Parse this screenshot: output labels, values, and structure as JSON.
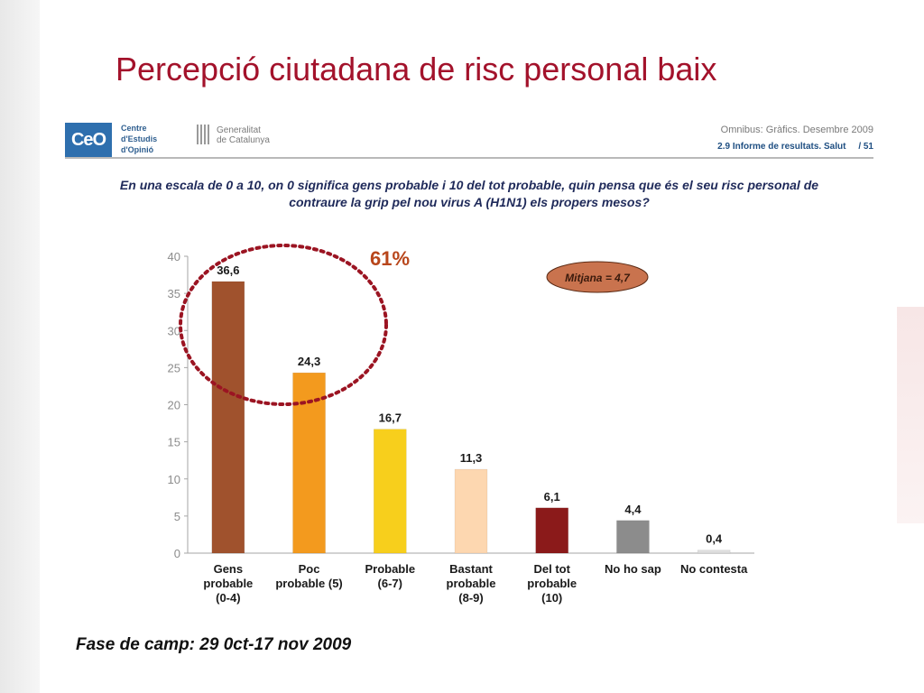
{
  "slide": {
    "title": "Percepció ciutadana de risc personal baix"
  },
  "header": {
    "ceo_logo": "CeO",
    "ceo_lines": [
      "Centre",
      "d'Estudis",
      "d'Opinió"
    ],
    "gen_lines": [
      "Generalitat",
      "de Catalunya"
    ],
    "report_title": "Omnibus: Gràfics. Desembre 2009",
    "report_section": "2.9 Informe de resultats. Salut",
    "page_number": "/ 51"
  },
  "question": {
    "line1": "En una escala de 0 a 10, on 0 significa gens probable i 10 del tot probable, quin pensa que és el seu risc personal de",
    "line2": "contraure la grip pel nou virus A (H1N1) els propers mesos?"
  },
  "chart_data": {
    "type": "bar",
    "categories": [
      [
        "Gens",
        "probable",
        "(0-4)"
      ],
      [
        "Poc",
        "probable (5)"
      ],
      [
        "Probable",
        "(6-7)"
      ],
      [
        "Bastant",
        "probable",
        "(8-9)"
      ],
      [
        "Del tot",
        "probable",
        "(10)"
      ],
      [
        "No ho sap"
      ],
      [
        "No contesta"
      ]
    ],
    "values": [
      36.6,
      24.3,
      16.7,
      11.3,
      6.1,
      4.4,
      0.4
    ],
    "value_labels": [
      "36,6",
      "24,3",
      "16,7",
      "11,3",
      "6,1",
      "4,4",
      "0,4"
    ],
    "colors": [
      "#a0522d",
      "#f39a1e",
      "#f7cf1c",
      "#fdd7b0",
      "#8b1a1a",
      "#8c8c8c",
      "#dedede"
    ],
    "ylim": [
      0,
      40
    ],
    "yticks": [
      0,
      5,
      10,
      15,
      20,
      25,
      30,
      35,
      40
    ],
    "grid": false,
    "annotations": {
      "highlight_percent": "61%",
      "mean_label": "Mitjana = 4,7"
    }
  },
  "footer": {
    "fieldwork": "Fase de camp: 29 0ct-17 nov 2009"
  }
}
